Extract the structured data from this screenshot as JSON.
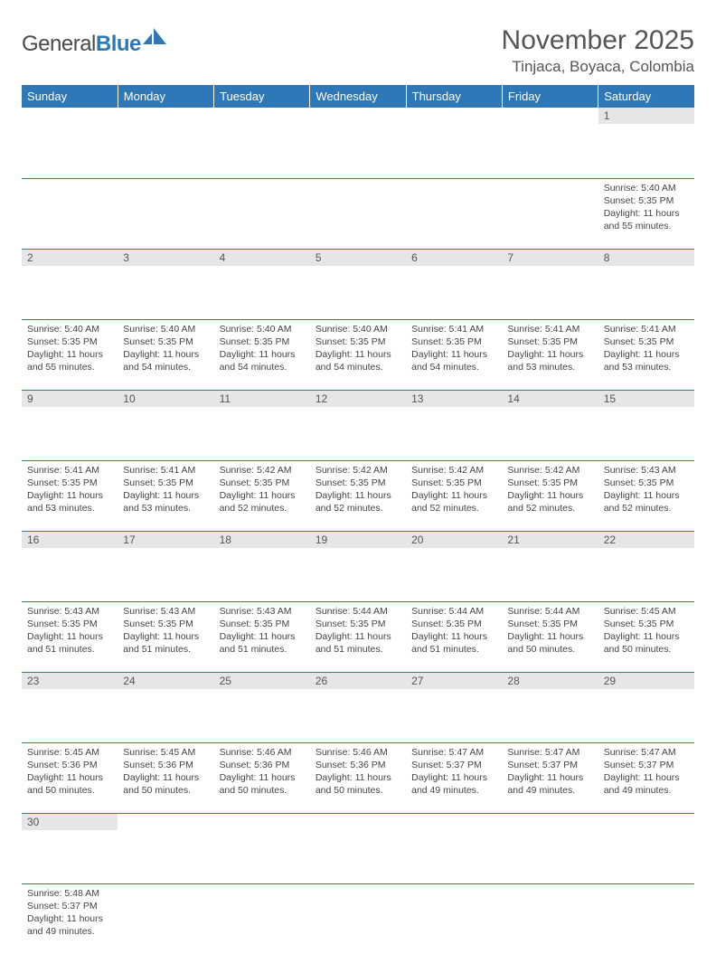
{
  "brand": {
    "part1": "General",
    "part2": "Blue"
  },
  "title": "November 2025",
  "location": "Tinjaca, Boyaca, Colombia",
  "colors": {
    "header_bg": "#2f78b7",
    "header_text": "#ffffff",
    "daynum_bg": "#e6e6e6",
    "rule": "#2f78b7",
    "body_text": "#444444"
  },
  "day_headers": [
    "Sunday",
    "Monday",
    "Tuesday",
    "Wednesday",
    "Thursday",
    "Friday",
    "Saturday"
  ],
  "weeks": [
    [
      {
        "n": "",
        "sunrise": "",
        "sunset": "",
        "daylight": ""
      },
      {
        "n": "",
        "sunrise": "",
        "sunset": "",
        "daylight": ""
      },
      {
        "n": "",
        "sunrise": "",
        "sunset": "",
        "daylight": ""
      },
      {
        "n": "",
        "sunrise": "",
        "sunset": "",
        "daylight": ""
      },
      {
        "n": "",
        "sunrise": "",
        "sunset": "",
        "daylight": ""
      },
      {
        "n": "",
        "sunrise": "",
        "sunset": "",
        "daylight": ""
      },
      {
        "n": "1",
        "sunrise": "Sunrise: 5:40 AM",
        "sunset": "Sunset: 5:35 PM",
        "daylight": "Daylight: 11 hours and 55 minutes."
      }
    ],
    [
      {
        "n": "2",
        "sunrise": "Sunrise: 5:40 AM",
        "sunset": "Sunset: 5:35 PM",
        "daylight": "Daylight: 11 hours and 55 minutes."
      },
      {
        "n": "3",
        "sunrise": "Sunrise: 5:40 AM",
        "sunset": "Sunset: 5:35 PM",
        "daylight": "Daylight: 11 hours and 54 minutes."
      },
      {
        "n": "4",
        "sunrise": "Sunrise: 5:40 AM",
        "sunset": "Sunset: 5:35 PM",
        "daylight": "Daylight: 11 hours and 54 minutes."
      },
      {
        "n": "5",
        "sunrise": "Sunrise: 5:40 AM",
        "sunset": "Sunset: 5:35 PM",
        "daylight": "Daylight: 11 hours and 54 minutes."
      },
      {
        "n": "6",
        "sunrise": "Sunrise: 5:41 AM",
        "sunset": "Sunset: 5:35 PM",
        "daylight": "Daylight: 11 hours and 54 minutes."
      },
      {
        "n": "7",
        "sunrise": "Sunrise: 5:41 AM",
        "sunset": "Sunset: 5:35 PM",
        "daylight": "Daylight: 11 hours and 53 minutes."
      },
      {
        "n": "8",
        "sunrise": "Sunrise: 5:41 AM",
        "sunset": "Sunset: 5:35 PM",
        "daylight": "Daylight: 11 hours and 53 minutes."
      }
    ],
    [
      {
        "n": "9",
        "sunrise": "Sunrise: 5:41 AM",
        "sunset": "Sunset: 5:35 PM",
        "daylight": "Daylight: 11 hours and 53 minutes."
      },
      {
        "n": "10",
        "sunrise": "Sunrise: 5:41 AM",
        "sunset": "Sunset: 5:35 PM",
        "daylight": "Daylight: 11 hours and 53 minutes."
      },
      {
        "n": "11",
        "sunrise": "Sunrise: 5:42 AM",
        "sunset": "Sunset: 5:35 PM",
        "daylight": "Daylight: 11 hours and 52 minutes."
      },
      {
        "n": "12",
        "sunrise": "Sunrise: 5:42 AM",
        "sunset": "Sunset: 5:35 PM",
        "daylight": "Daylight: 11 hours and 52 minutes."
      },
      {
        "n": "13",
        "sunrise": "Sunrise: 5:42 AM",
        "sunset": "Sunset: 5:35 PM",
        "daylight": "Daylight: 11 hours and 52 minutes."
      },
      {
        "n": "14",
        "sunrise": "Sunrise: 5:42 AM",
        "sunset": "Sunset: 5:35 PM",
        "daylight": "Daylight: 11 hours and 52 minutes."
      },
      {
        "n": "15",
        "sunrise": "Sunrise: 5:43 AM",
        "sunset": "Sunset: 5:35 PM",
        "daylight": "Daylight: 11 hours and 52 minutes."
      }
    ],
    [
      {
        "n": "16",
        "sunrise": "Sunrise: 5:43 AM",
        "sunset": "Sunset: 5:35 PM",
        "daylight": "Daylight: 11 hours and 51 minutes."
      },
      {
        "n": "17",
        "sunrise": "Sunrise: 5:43 AM",
        "sunset": "Sunset: 5:35 PM",
        "daylight": "Daylight: 11 hours and 51 minutes."
      },
      {
        "n": "18",
        "sunrise": "Sunrise: 5:43 AM",
        "sunset": "Sunset: 5:35 PM",
        "daylight": "Daylight: 11 hours and 51 minutes."
      },
      {
        "n": "19",
        "sunrise": "Sunrise: 5:44 AM",
        "sunset": "Sunset: 5:35 PM",
        "daylight": "Daylight: 11 hours and 51 minutes."
      },
      {
        "n": "20",
        "sunrise": "Sunrise: 5:44 AM",
        "sunset": "Sunset: 5:35 PM",
        "daylight": "Daylight: 11 hours and 51 minutes."
      },
      {
        "n": "21",
        "sunrise": "Sunrise: 5:44 AM",
        "sunset": "Sunset: 5:35 PM",
        "daylight": "Daylight: 11 hours and 50 minutes."
      },
      {
        "n": "22",
        "sunrise": "Sunrise: 5:45 AM",
        "sunset": "Sunset: 5:35 PM",
        "daylight": "Daylight: 11 hours and 50 minutes."
      }
    ],
    [
      {
        "n": "23",
        "sunrise": "Sunrise: 5:45 AM",
        "sunset": "Sunset: 5:36 PM",
        "daylight": "Daylight: 11 hours and 50 minutes."
      },
      {
        "n": "24",
        "sunrise": "Sunrise: 5:45 AM",
        "sunset": "Sunset: 5:36 PM",
        "daylight": "Daylight: 11 hours and 50 minutes."
      },
      {
        "n": "25",
        "sunrise": "Sunrise: 5:46 AM",
        "sunset": "Sunset: 5:36 PM",
        "daylight": "Daylight: 11 hours and 50 minutes."
      },
      {
        "n": "26",
        "sunrise": "Sunrise: 5:46 AM",
        "sunset": "Sunset: 5:36 PM",
        "daylight": "Daylight: 11 hours and 50 minutes."
      },
      {
        "n": "27",
        "sunrise": "Sunrise: 5:47 AM",
        "sunset": "Sunset: 5:37 PM",
        "daylight": "Daylight: 11 hours and 49 minutes."
      },
      {
        "n": "28",
        "sunrise": "Sunrise: 5:47 AM",
        "sunset": "Sunset: 5:37 PM",
        "daylight": "Daylight: 11 hours and 49 minutes."
      },
      {
        "n": "29",
        "sunrise": "Sunrise: 5:47 AM",
        "sunset": "Sunset: 5:37 PM",
        "daylight": "Daylight: 11 hours and 49 minutes."
      }
    ],
    [
      {
        "n": "30",
        "sunrise": "Sunrise: 5:48 AM",
        "sunset": "Sunset: 5:37 PM",
        "daylight": "Daylight: 11 hours and 49 minutes."
      },
      {
        "n": "",
        "sunrise": "",
        "sunset": "",
        "daylight": ""
      },
      {
        "n": "",
        "sunrise": "",
        "sunset": "",
        "daylight": ""
      },
      {
        "n": "",
        "sunrise": "",
        "sunset": "",
        "daylight": ""
      },
      {
        "n": "",
        "sunrise": "",
        "sunset": "",
        "daylight": ""
      },
      {
        "n": "",
        "sunrise": "",
        "sunset": "",
        "daylight": ""
      },
      {
        "n": "",
        "sunrise": "",
        "sunset": "",
        "daylight": ""
      }
    ]
  ]
}
